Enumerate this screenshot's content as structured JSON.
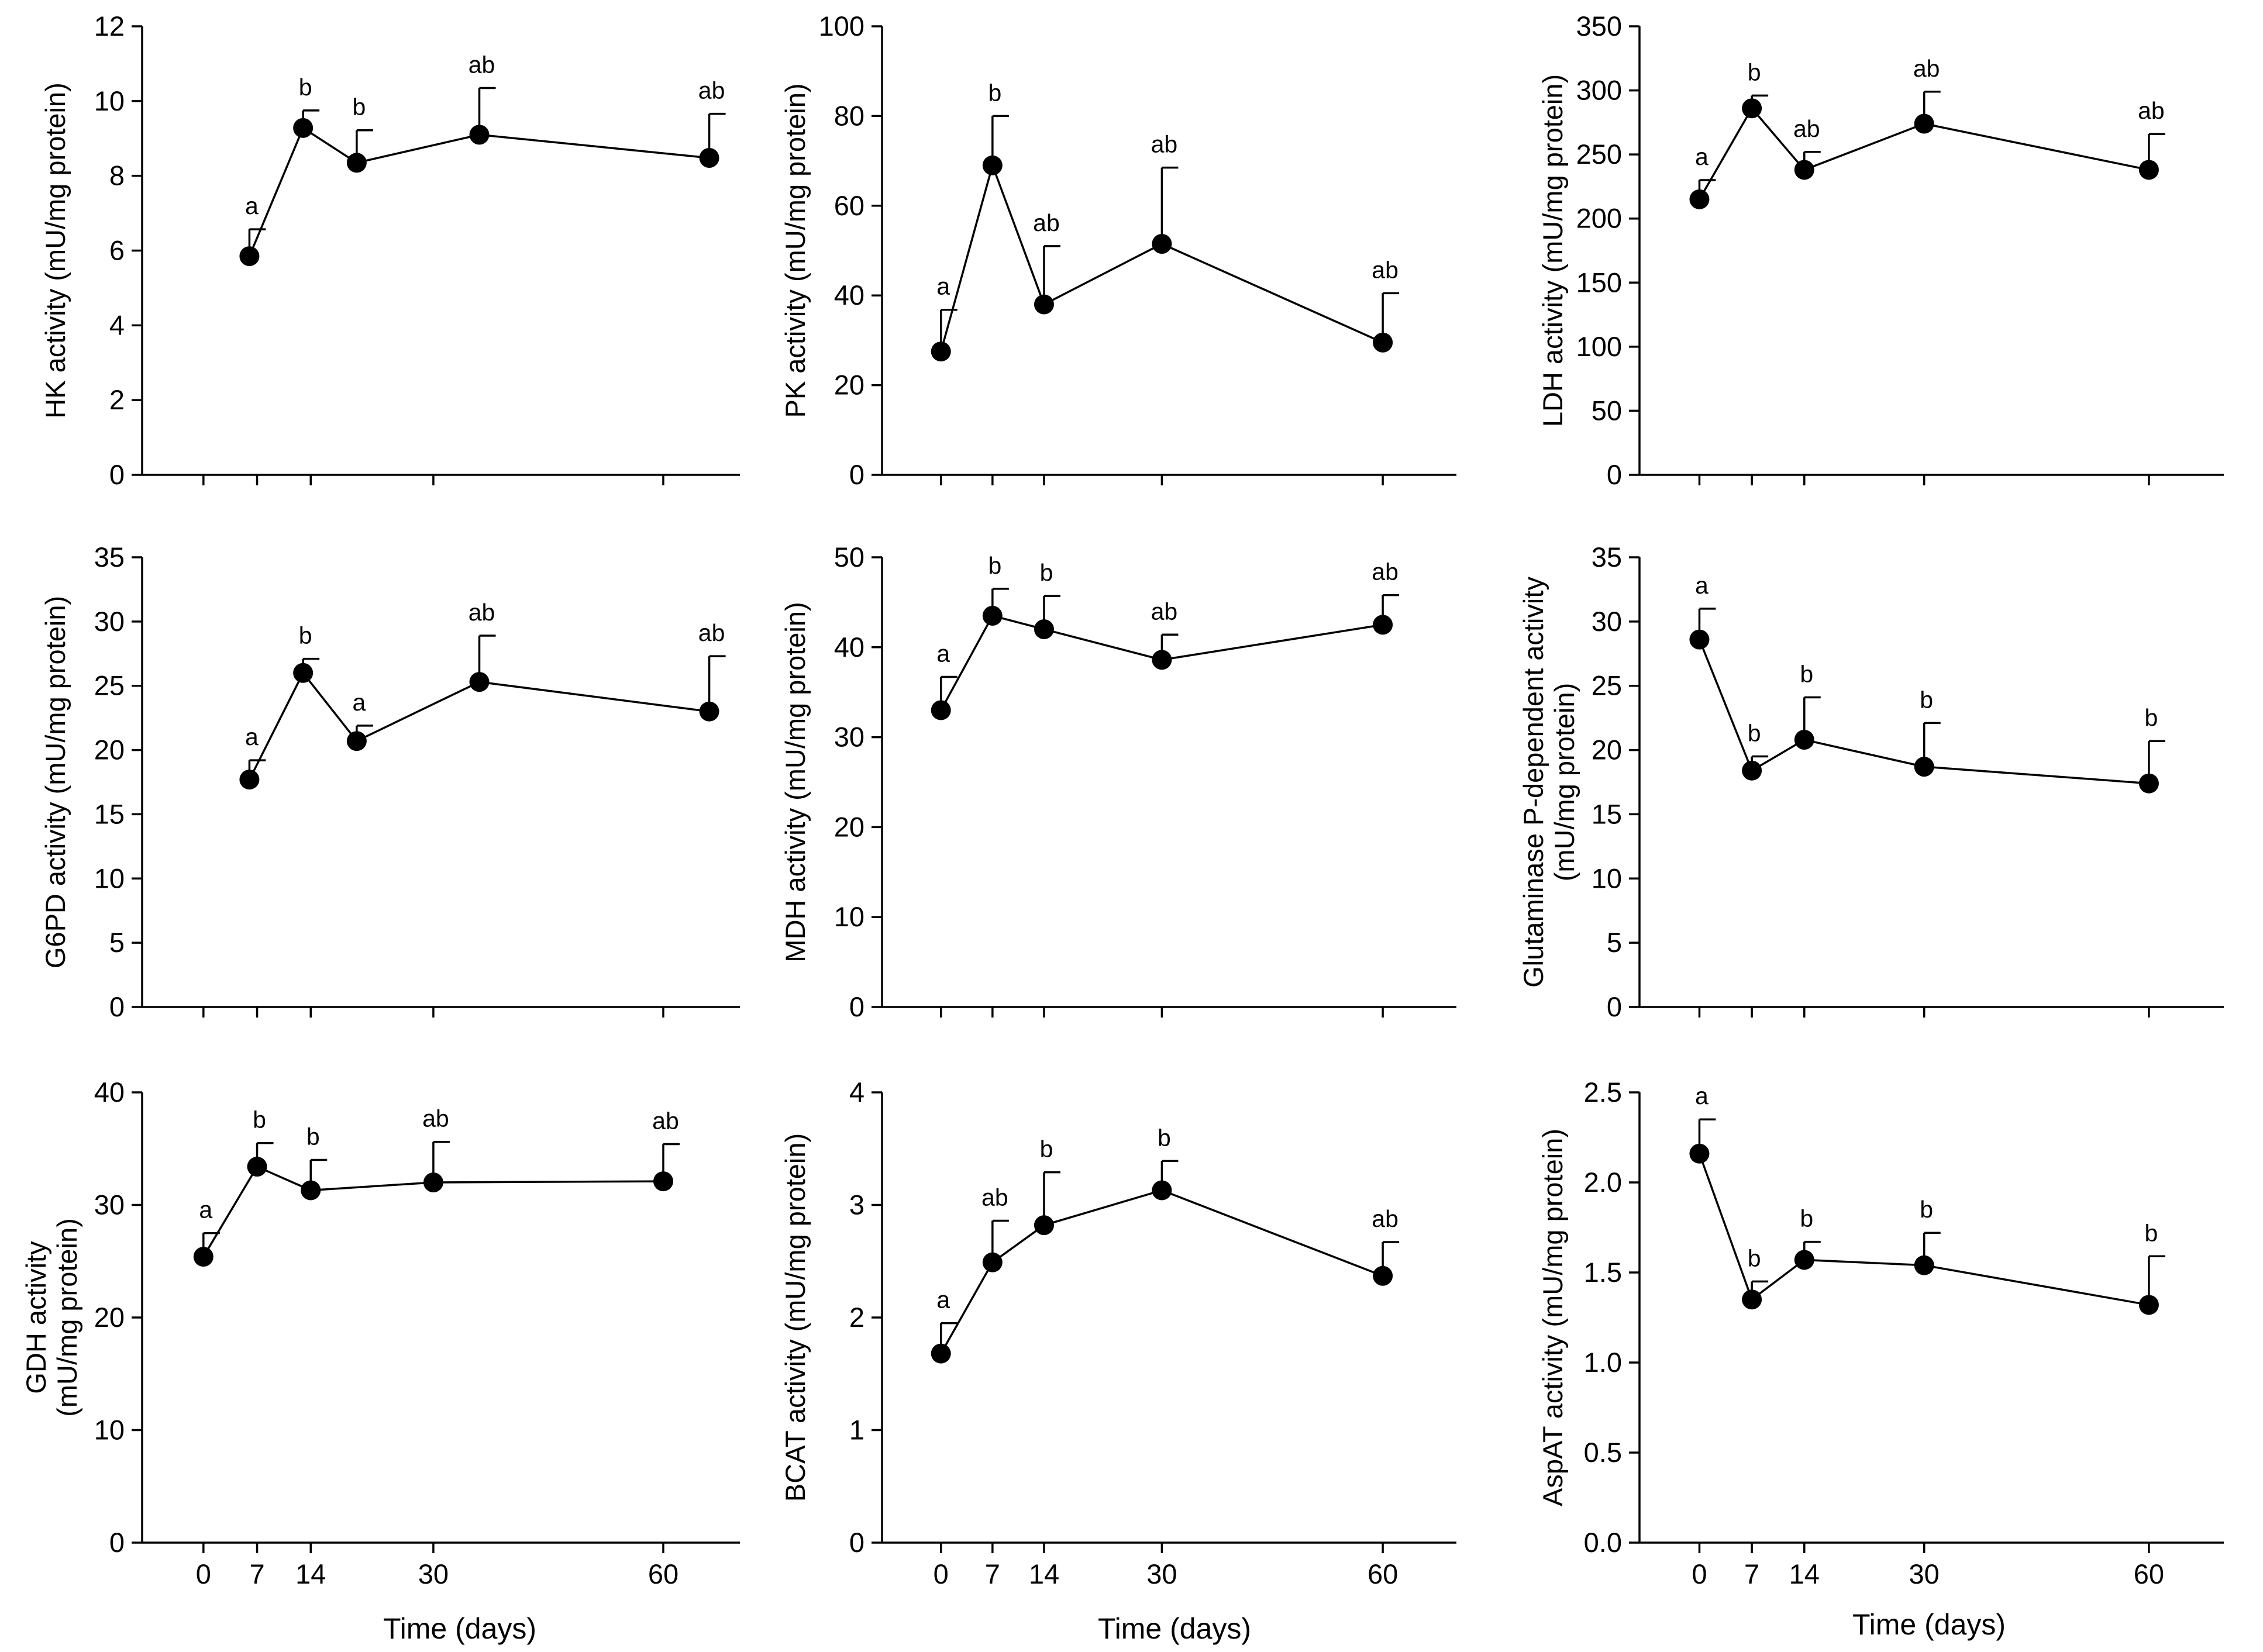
{
  "figure": {
    "x_axis_title": "Time (days)"
  },
  "chart_data": [
    {
      "type": "line",
      "ylabel": "HK activity (mU/mg protein)",
      "ylim": [
        0,
        12
      ],
      "yticks": [
        0,
        2,
        4,
        6,
        8,
        10,
        12
      ],
      "xlim": [
        -8,
        70
      ],
      "x_ticks": [
        0,
        7,
        14,
        30,
        60
      ],
      "x_tick_labels": [],
      "x_offset": 6,
      "x": [
        0,
        7,
        14,
        30,
        60
      ],
      "values": [
        5.85,
        9.28,
        8.35,
        9.1,
        8.48
      ],
      "errors": [
        0.72,
        0.47,
        0.87,
        1.25,
        1.18
      ],
      "letters": [
        "a",
        "b",
        "b",
        "ab",
        "ab"
      ]
    },
    {
      "type": "line",
      "ylabel": "PK activity (mU/mg protein)",
      "ylim": [
        0,
        100
      ],
      "yticks": [
        0,
        20,
        40,
        60,
        80,
        100
      ],
      "xlim": [
        -8,
        70
      ],
      "x_ticks": [
        0,
        7,
        14,
        30,
        60
      ],
      "x_tick_labels": [],
      "x_offset": 0,
      "x": [
        0,
        7,
        14,
        30,
        60
      ],
      "values": [
        27.5,
        69,
        38,
        51.5,
        29.5
      ],
      "errors": [
        9.3,
        11,
        13,
        17,
        11
      ],
      "letters": [
        "a",
        "b",
        "ab",
        "ab",
        "ab"
      ]
    },
    {
      "type": "line",
      "ylabel": "LDH activity (mU/mg protein)",
      "ylim": [
        0,
        350
      ],
      "yticks": [
        0,
        50,
        100,
        150,
        200,
        250,
        300,
        350
      ],
      "xlim": [
        -8,
        70
      ],
      "x_ticks": [
        0,
        7,
        14,
        30,
        60
      ],
      "x_tick_labels": [],
      "x_offset": 0,
      "x": [
        0,
        7,
        14,
        30,
        60
      ],
      "values": [
        215,
        286,
        238,
        274,
        238
      ],
      "errors": [
        15,
        10,
        14,
        25,
        28
      ],
      "letters": [
        "a",
        "b",
        "ab",
        "ab",
        "ab"
      ]
    },
    {
      "type": "line",
      "ylabel": "G6PD activity (mU/mg protein)",
      "ylim": [
        0,
        35
      ],
      "yticks": [
        0,
        5,
        10,
        15,
        20,
        25,
        30,
        35
      ],
      "xlim": [
        -8,
        70
      ],
      "x_ticks": [
        0,
        7,
        14,
        30,
        60
      ],
      "x_tick_labels": [],
      "x_offset": 6,
      "x": [
        0,
        7,
        14,
        30,
        60
      ],
      "values": [
        17.7,
        26,
        20.7,
        25.3,
        23
      ],
      "errors": [
        1.5,
        1.1,
        1.2,
        3.6,
        4.3
      ],
      "letters": [
        "a",
        "b",
        "a",
        "ab",
        "ab"
      ]
    },
    {
      "type": "line",
      "ylabel": "MDH activity (mU/mg protein)",
      "ylim": [
        0,
        50
      ],
      "yticks": [
        0,
        10,
        20,
        30,
        40,
        50
      ],
      "xlim": [
        -8,
        70
      ],
      "x_ticks": [
        0,
        7,
        14,
        30,
        60
      ],
      "x_tick_labels": [],
      "x_offset": 0,
      "x": [
        0,
        7,
        14,
        30,
        60
      ],
      "values": [
        33,
        43.5,
        42,
        38.6,
        42.5
      ],
      "errors": [
        3.7,
        3,
        3.7,
        2.8,
        3.3
      ],
      "letters": [
        "a",
        "b",
        "b",
        "ab",
        "ab"
      ]
    },
    {
      "type": "line",
      "ylabel": "Glutaminase P-dependent activity",
      "ylabel2": "(mU/mg protein)",
      "ylim": [
        0,
        35
      ],
      "yticks": [
        0,
        5,
        10,
        15,
        20,
        25,
        30,
        35
      ],
      "xlim": [
        -8,
        70
      ],
      "x_ticks": [
        0,
        7,
        14,
        30,
        60
      ],
      "x_tick_labels": [],
      "x_offset": 0,
      "x": [
        0,
        7,
        14,
        30,
        60
      ],
      "values": [
        28.6,
        18.4,
        20.8,
        18.7,
        17.4
      ],
      "errors": [
        2.4,
        1.1,
        3.3,
        3.4,
        3.3
      ],
      "letters": [
        "a",
        "b",
        "b",
        "b",
        "b"
      ]
    },
    {
      "type": "line",
      "ylabel": "GDH activity",
      "ylabel2": "(mU/mg protein)",
      "ylim": [
        0,
        40
      ],
      "yticks": [
        0,
        10,
        20,
        30,
        40
      ],
      "xlim": [
        -8,
        70
      ],
      "x_ticks": [
        0,
        7,
        14,
        30,
        60
      ],
      "x_tick_labels": [
        "0",
        "7",
        "14",
        "30",
        "60"
      ],
      "x_offset": 0,
      "x": [
        0,
        7,
        14,
        30,
        60
      ],
      "values": [
        25.4,
        33.4,
        31.3,
        32,
        32.1
      ],
      "errors": [
        2.1,
        2.1,
        2.7,
        3.6,
        3.3
      ],
      "letters": [
        "a",
        "b",
        "b",
        "ab",
        "ab"
      ]
    },
    {
      "type": "line",
      "ylabel": "BCAT activity (mU/mg protein)",
      "ylim": [
        0,
        4
      ],
      "yticks": [
        0,
        1,
        2,
        3,
        4
      ],
      "xlim": [
        -8,
        70
      ],
      "x_ticks": [
        0,
        7,
        14,
        30,
        60
      ],
      "x_tick_labels": [
        "0",
        "7",
        "14",
        "30",
        "60"
      ],
      "x_offset": 0,
      "x": [
        0,
        7,
        14,
        30,
        60
      ],
      "values": [
        1.68,
        2.49,
        2.82,
        3.13,
        2.37
      ],
      "errors": [
        0.27,
        0.37,
        0.47,
        0.26,
        0.3
      ],
      "letters": [
        "a",
        "ab",
        "b",
        "b",
        "ab"
      ]
    },
    {
      "type": "line",
      "ylabel": "AspAT activity (mU/mg protein)",
      "ylim": [
        0,
        2.5
      ],
      "yticks": [
        "0.0",
        "0.5",
        "1.0",
        "1.5",
        "2.0",
        "2.5"
      ],
      "xlim": [
        -8,
        70
      ],
      "x_ticks": [
        0,
        7,
        14,
        30,
        60
      ],
      "x_tick_labels": [
        "0",
        "7",
        "14",
        "30",
        "60"
      ],
      "x_offset": 0,
      "x": [
        0,
        7,
        14,
        30,
        60
      ],
      "values": [
        2.16,
        1.35,
        1.57,
        1.54,
        1.32
      ],
      "errors": [
        0.19,
        0.1,
        0.1,
        0.18,
        0.27
      ],
      "letters": [
        "a",
        "b",
        "b",
        "b",
        "b"
      ]
    }
  ]
}
